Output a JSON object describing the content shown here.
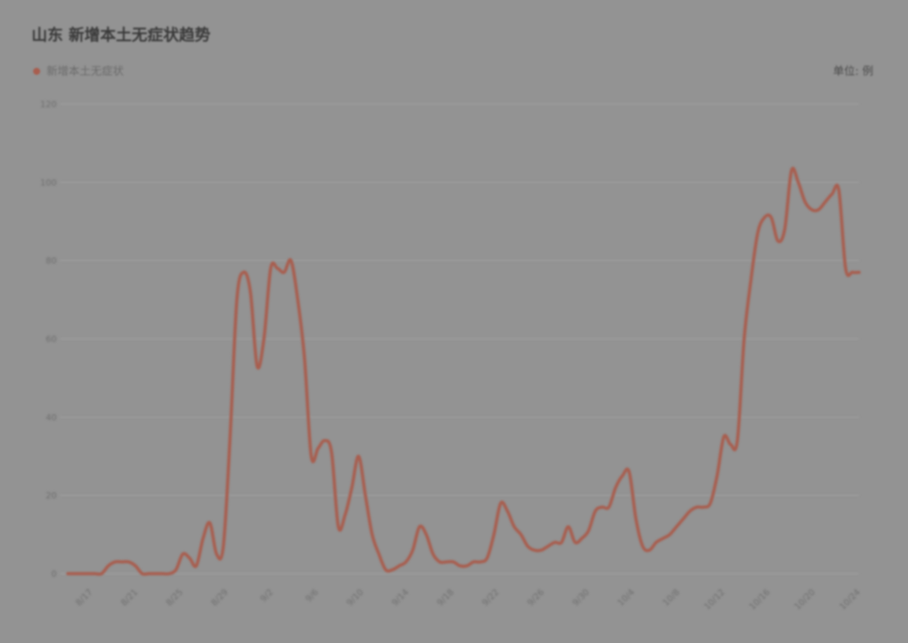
{
  "title": "山东 新增本土无症状趋势",
  "legend_label": "新增本土无症状",
  "unit_label": "单位: 例",
  "colors": {
    "series": "#a85e4f",
    "grid": "#a3a3a3"
  },
  "chart_data": {
    "type": "line",
    "title": "山东 新增本土无症状趋势",
    "ylim": [
      0,
      120
    ],
    "yticks": [
      "0",
      "20",
      "40",
      "60",
      "80",
      "100",
      "120"
    ],
    "grid": true,
    "legend": "top-left",
    "xticks": [
      "8/17",
      "8/21",
      "8/25",
      "8/29",
      "9/2",
      "9/6",
      "9/10",
      "9/14",
      "9/18",
      "9/22",
      "9/26",
      "9/30",
      "10/4",
      "10/8",
      "10/12",
      "10/16",
      "10/20",
      "10/24"
    ],
    "series": [
      {
        "name": "新增本土无症状",
        "values": [
          0,
          0,
          0,
          0,
          0,
          0,
          2,
          3,
          3,
          3,
          2,
          0,
          0,
          0,
          0,
          0,
          1,
          5,
          4,
          2,
          9,
          13,
          5,
          7,
          35,
          70,
          77,
          72,
          53,
          60,
          78,
          78,
          77,
          80,
          70,
          55,
          30,
          32,
          34,
          31,
          12,
          15,
          22,
          30,
          20,
          10,
          5,
          1,
          1,
          2,
          3,
          6,
          12,
          10,
          5,
          3,
          3,
          3,
          2,
          2,
          3,
          3,
          4,
          10,
          18,
          16,
          12,
          10,
          7,
          6,
          6,
          7,
          8,
          8,
          12,
          8,
          9,
          11,
          16,
          17,
          17,
          22,
          25,
          26,
          14,
          7,
          6,
          8,
          9,
          10,
          12,
          14,
          16,
          17,
          17,
          18,
          25,
          35,
          33,
          34,
          60,
          75,
          87,
          91,
          91,
          85,
          88,
          103,
          100,
          95,
          93,
          93,
          95,
          97,
          98,
          78,
          77,
          77
        ]
      }
    ]
  }
}
